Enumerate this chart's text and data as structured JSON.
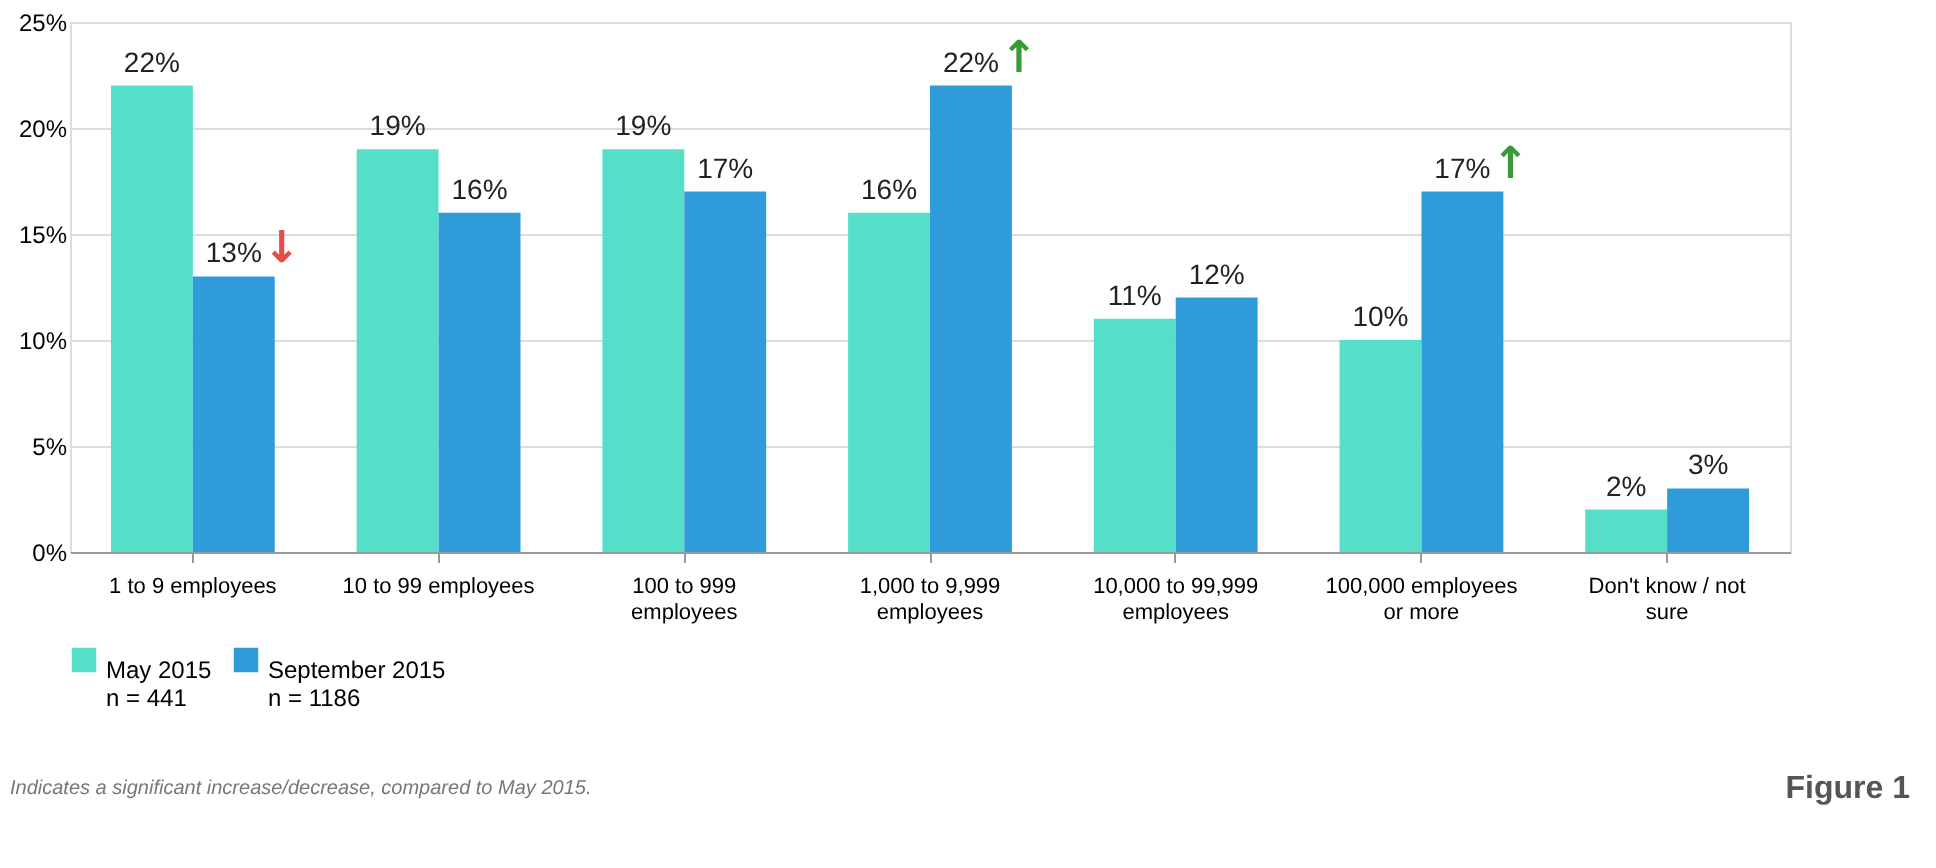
{
  "chart_data": {
    "type": "bar",
    "categories": [
      "1 to 9 employees",
      "10 to 99 employees",
      "100 to 999 employees",
      "1,000 to 9,999 employees",
      "10,000 to 99,999 employees",
      "100,000 employees or more",
      "Don't know / not sure"
    ],
    "series": [
      {
        "name": "May 2015\nn = 441",
        "color": "#55dfc8",
        "values": [
          22,
          19,
          19,
          16,
          11,
          10,
          2
        ],
        "value_labels": [
          "22%",
          "19%",
          "19%",
          "16%",
          "11%",
          "10%",
          "2%"
        ]
      },
      {
        "name": "September 2015\nn = 1186",
        "color": "#2f9bd9",
        "values": [
          13,
          16,
          17,
          22,
          12,
          17,
          3
        ],
        "value_labels": [
          "13%",
          "16%",
          "17%",
          "22%",
          "12%",
          "17%",
          "3%"
        ]
      }
    ],
    "ylim": [
      0,
      25
    ],
    "yticks": [
      {
        "value": 0,
        "label": "0%"
      },
      {
        "value": 5,
        "label": "5%"
      },
      {
        "value": 10,
        "label": "10%"
      },
      {
        "value": 15,
        "label": "15%"
      },
      {
        "value": 20,
        "label": "20%"
      },
      {
        "value": 25,
        "label": "25%"
      }
    ],
    "grid": "y",
    "legend": "bottom",
    "annotations": [
      {
        "text": "↓",
        "x": "1 to 9 employees",
        "y": 13
      },
      {
        "text": "↑",
        "x": "1,000 to 9,999 employees",
        "y": 22
      },
      {
        "text": "↑",
        "x": "100,000 employees or more",
        "y": 17
      },
      "Indicates a significant increase/decrease, compared to May 2015.",
      "Figure 1"
    ]
  }
}
